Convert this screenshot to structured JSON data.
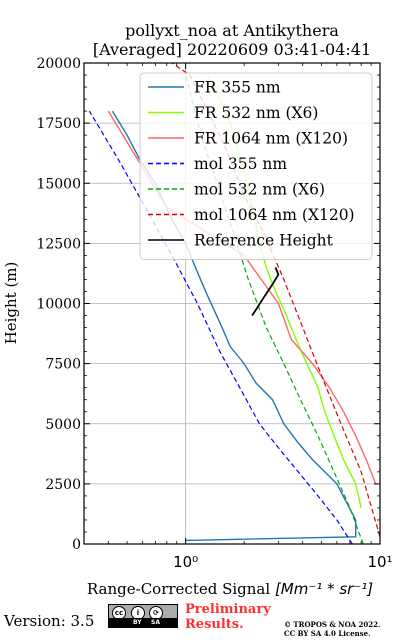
{
  "chart_data": {
    "type": "line",
    "title": [
      "pollyxt_noa at Antikythera",
      "[Averaged] 20220609 03:41-04:41"
    ],
    "xlabel_text": "Range-Corrected Signal ",
    "xlabel_unit": "[Mm⁻¹ * sr⁻¹]",
    "ylabel": "Height (m)",
    "x_scale": "log",
    "xlim": [
      0.3,
      10
    ],
    "ylim": [
      0,
      20000
    ],
    "x_ticks": [
      1,
      10
    ],
    "x_tick_labels": [
      "10⁰",
      "10¹"
    ],
    "y_ticks": [
      0,
      2500,
      5000,
      7500,
      10000,
      12500,
      15000,
      17500,
      20000
    ],
    "y_tick_labels": [
      "0",
      "2500",
      "5000",
      "7500",
      "10000",
      "12500",
      "15000",
      "17500",
      "20000"
    ],
    "grid": true,
    "legend_position": "top-right",
    "series": [
      {
        "name": "FR 355 nm",
        "style": "solid",
        "color": "#1f77b4",
        "x": [
          1.0,
          7.5,
          7.5,
          6.0,
          4.5,
          3.8,
          3.2,
          2.8,
          2.3,
          2.0,
          1.7,
          1.5,
          1.3,
          1.15,
          1.0,
          0.85,
          0.7,
          0.58,
          0.5,
          0.42
        ],
        "y": [
          150,
          300,
          1000,
          2500,
          3500,
          4200,
          5000,
          6000,
          6700,
          7500,
          8200,
          9200,
          10300,
          11300,
          12500,
          13500,
          15000,
          16000,
          17000,
          18000
        ]
      },
      {
        "name": "FR 532 nm (X6)",
        "style": "solid",
        "color": "#7fff00",
        "x": [
          8.0,
          7.5,
          6.5,
          5.8,
          5.2,
          4.8,
          4.2,
          3.7,
          3.3,
          2.9,
          2.6,
          2.4,
          2.2,
          2.0,
          1.7,
          1.3
        ],
        "y": [
          1500,
          2500,
          3500,
          4500,
          5500,
          6500,
          7500,
          8500,
          9500,
          10500,
          11500,
          12500,
          14000,
          15500,
          17500,
          19500
        ]
      },
      {
        "name": "FR 1064 nm (X120)",
        "style": "solid",
        "color": "#ff6666",
        "x": [
          9.5,
          8.5,
          7.5,
          6.5,
          5.5,
          4.5,
          3.5,
          3.0,
          2.0,
          0.8,
          0.4
        ],
        "y": [
          2500,
          3500,
          4500,
          5500,
          6500,
          7500,
          8500,
          10000,
          12000,
          14000,
          18000
        ]
      },
      {
        "name": "mol 355 nm",
        "style": "dashed",
        "color": "#0000ff",
        "x": [
          7.2,
          6.0,
          4.8,
          3.8,
          3.0,
          2.4,
          1.9,
          1.5,
          1.15,
          0.85,
          0.62,
          0.45,
          0.32
        ],
        "y": [
          0,
          1000,
          2000,
          3000,
          4000,
          5000,
          6500,
          8000,
          10000,
          12000,
          14000,
          16000,
          18000
        ]
      },
      {
        "name": "mol 532 nm (X6)",
        "style": "dashed",
        "color": "#00aa00",
        "x": [
          8.2,
          7.0,
          5.8,
          4.8,
          3.9,
          3.2,
          2.6,
          2.1,
          1.75,
          1.45,
          1.2,
          1.0
        ],
        "y": [
          0,
          1500,
          3000,
          4500,
          6000,
          7500,
          9000,
          11000,
          13000,
          15000,
          17000,
          19500
        ]
      },
      {
        "name": "mol 1064 nm (X120)",
        "style": "dashed",
        "color": "#dd0000",
        "x": [
          10.0,
          8.0,
          6.3,
          5.0,
          4.0,
          3.2,
          2.5,
          2.0,
          1.6,
          1.3,
          1.05,
          0.85
        ],
        "y": [
          300,
          3000,
          5000,
          7000,
          9000,
          11000,
          13000,
          14500,
          16500,
          18000,
          19500,
          20000
        ]
      },
      {
        "name": "Reference Height",
        "style": "solid",
        "color": "#000000",
        "x": [
          2.2,
          2.5,
          2.8,
          3.0,
          2.9
        ],
        "y": [
          9500,
          10200,
          10800,
          11200,
          11500
        ]
      }
    ]
  },
  "footer": {
    "version": "Version: 3.5",
    "cc": {
      "by": "BY",
      "sa": "SA"
    },
    "preliminary_line1": "Preliminary",
    "preliminary_line2": "Results.",
    "copyright_line1": "© TROPOS & NOA 2022.",
    "copyright_line2": "CC BY SA 4.0 License."
  }
}
